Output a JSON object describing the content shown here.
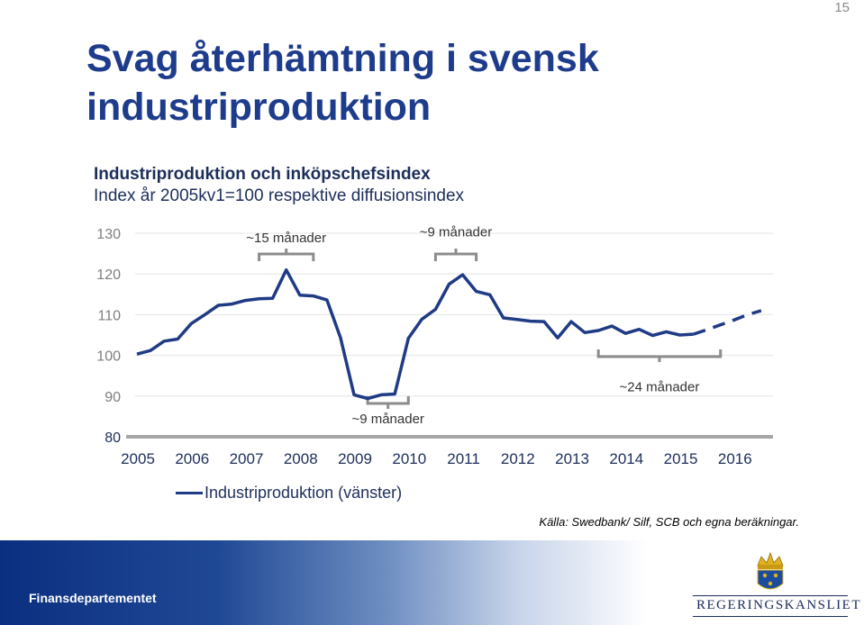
{
  "page_number": "15",
  "slide": {
    "title": "Svag återhämtning i svensk industriproduktion"
  },
  "footer": {
    "label": "Finansdepartementet",
    "logo_text": "REGERINGSKANSLIET"
  },
  "source": {
    "label": "Källa",
    "text": ": Swedbank/ Silf, SCB och egna beräkningar."
  },
  "colors": {
    "title": "#1e3c8c",
    "series": "#1f3b85",
    "bracket": "#8c8c8c",
    "footer": "#0b2f80"
  },
  "chart_data": {
    "type": "line",
    "title": "Industriproduktion och inköpschefsindex",
    "subtitle": "Index år 2005kv1=100 respektive diffusionsindex",
    "ylim": [
      80,
      130
    ],
    "yticks": [
      "130",
      "120",
      "110",
      "100",
      "90",
      "80"
    ],
    "xticks": [
      "2005",
      "2006",
      "2007",
      "2008",
      "2009",
      "2010",
      "2011",
      "2012",
      "2013",
      "2014",
      "2015",
      "2016"
    ],
    "grid": true,
    "legend_position": "bottom",
    "series": [
      {
        "name": "Industriproduktion (vänster)",
        "x_start": 2005.0,
        "step": 0.25,
        "values": [
          100.3,
          101.2,
          103.5,
          104.0,
          107.8,
          110.0,
          112.3,
          112.6,
          113.5,
          113.9,
          114.0,
          121.0,
          114.8,
          114.6,
          113.6,
          104.3,
          90.3,
          89.4,
          90.3,
          90.5,
          104.2,
          108.9,
          111.3,
          117.5,
          119.8,
          115.7,
          114.9,
          109.2,
          108.8,
          108.4,
          108.3,
          104.3,
          108.3,
          105.6,
          106.1,
          107.2,
          105.4,
          106.4,
          104.9,
          105.8,
          105.0,
          105.2
        ],
        "forecast": {
          "x_start": 2015.25,
          "step": 0.25,
          "values": [
            105.2,
            106.3,
            107.5,
            108.7,
            110.0,
            111.0
          ]
        }
      }
    ],
    "annotations": [
      {
        "text": "~15 månader",
        "x_from": 2007.25,
        "x_to": 2008.25,
        "side": "top",
        "label_y": 127.8
      },
      {
        "text": "~9 månader",
        "x_from": 2010.5,
        "x_to": 2011.25,
        "side": "top",
        "label_y": 129.2
      },
      {
        "text": "~9 månader",
        "x_from": 2009.25,
        "x_to": 2010.0,
        "side": "bottom",
        "label_y": 83.3
      },
      {
        "text": "~24 månader",
        "x_from": 2013.5,
        "x_to": 2015.75,
        "side": "bottom",
        "label_y": 91.2
      }
    ]
  }
}
